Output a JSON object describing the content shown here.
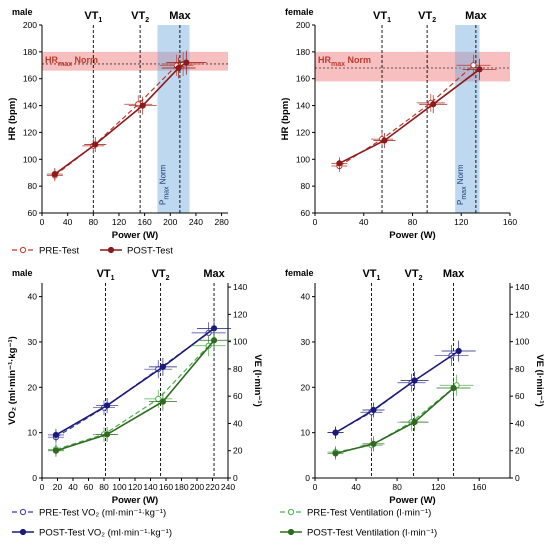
{
  "colors": {
    "pre_hr": "#c0392b",
    "post_hr": "#8b1a1a",
    "norm_band": "#f08080",
    "pmax_band": "#6fa8dc",
    "pre_vo2": "#3a3aa0",
    "post_vo2": "#1a1a7a",
    "pre_ve": "#4caf50",
    "post_ve": "#2e6b1f"
  },
  "chart_data": [
    {
      "type": "line",
      "panel": "male",
      "xlabel": "Power (W)",
      "ylabel": "HR (bpm)",
      "xlim": [
        0,
        290
      ],
      "ylim": [
        60,
        200
      ],
      "xticks": [
        "0",
        "40",
        "80",
        "120",
        "160",
        "200",
        "240",
        "280"
      ],
      "yticks": [
        "60",
        "80",
        "100",
        "120",
        "140",
        "160",
        "180",
        "200"
      ],
      "markers": [
        {
          "label": "VT",
          "sub": "1",
          "x": 80
        },
        {
          "label": "VT",
          "sub": "2",
          "x": 153
        },
        {
          "label": "Max",
          "x": 215
        }
      ],
      "band_label_main": "HR",
      "band_label_sub": "max",
      "band_label_tail": " Norm",
      "norm_band": {
        "y": [
          166,
          180
        ],
        "line": 171
      },
      "pmax_label_main": "P",
      "pmax_label_sub": "max",
      "pmax_label_tail": " Norm",
      "pmax_band": {
        "x": [
          180,
          230
        ]
      },
      "series": [
        {
          "name": "PRE-Test",
          "style": "pre",
          "x": [
            20,
            80,
            150,
            210,
            220
          ],
          "y": [
            88,
            110,
            141,
            170,
            171
          ]
        },
        {
          "name": "POST-Test",
          "style": "post",
          "x": [
            20,
            83,
            157,
            213,
            225
          ],
          "y": [
            89,
            111,
            140,
            168,
            172
          ]
        }
      ]
    },
    {
      "type": "line",
      "panel": "female",
      "xlabel": "Power (W)",
      "ylabel": "HR (bpm)",
      "xlim": [
        0,
        160
      ],
      "ylim": [
        60,
        200
      ],
      "xticks": [
        "0",
        "40",
        "80",
        "120",
        "160"
      ],
      "yticks": [
        "60",
        "80",
        "100",
        "120",
        "140",
        "160",
        "180",
        "200"
      ],
      "markers": [
        {
          "label": "VT",
          "sub": "1",
          "x": 55
        },
        {
          "label": "VT",
          "sub": "2",
          "x": 92
        },
        {
          "label": "Max",
          "x": 132
        }
      ],
      "band_label_main": "HR",
      "band_label_sub": "max",
      "band_label_tail": " Norm",
      "norm_band": {
        "y": [
          158,
          180
        ],
        "line": 168
      },
      "pmax_label_main": "P",
      "pmax_label_sub": "max",
      "pmax_label_tail": " Norm",
      "pmax_band": {
        "x": [
          115,
          135
        ]
      },
      "series": [
        {
          "name": "PRE-Test",
          "style": "pre",
          "x": [
            20,
            55,
            95,
            130
          ],
          "y": [
            95,
            115,
            142,
            170
          ]
        },
        {
          "name": "POST-Test",
          "style": "post",
          "x": [
            20,
            57,
            97,
            135
          ],
          "y": [
            97,
            114,
            141,
            167
          ]
        }
      ]
    },
    {
      "type": "line",
      "panel": "male",
      "xlabel": "Power (W)",
      "ylabel": "VO₂ (ml·min⁻¹·kg⁻¹)",
      "ylabel_right": "VE (l·min⁻¹)",
      "xlim": [
        0,
        240
      ],
      "ylim": [
        0,
        43
      ],
      "ylim_right": [
        0,
        143
      ],
      "xticks": [
        "0",
        "20",
        "40",
        "60",
        "80",
        "100",
        "120",
        "140",
        "160",
        "180",
        "200",
        "220",
        "240"
      ],
      "yticks": [
        "0",
        "10",
        "20",
        "30",
        "40"
      ],
      "yticks_right": [
        "0",
        "20",
        "40",
        "60",
        "80",
        "100",
        "120",
        "140"
      ],
      "markers": [
        {
          "label": "VT",
          "sub": "1",
          "x": 82
        },
        {
          "label": "VT",
          "sub": "2",
          "x": 153
        },
        {
          "label": "Max",
          "x": 222
        }
      ],
      "series": [
        {
          "name": "PRE-Test VO₂ (ml·min⁻¹·kg⁻¹)",
          "style": "pre_vo2",
          "axis": "left",
          "x": [
            18,
            80,
            150,
            215
          ],
          "y": [
            9,
            15.5,
            24,
            32
          ]
        },
        {
          "name": "POST-Test VO₂ (ml·min⁻¹·kg⁻¹)",
          "style": "post_vo2",
          "axis": "left",
          "x": [
            18,
            84,
            156,
            222
          ],
          "y": [
            9.5,
            16,
            24.5,
            33
          ]
        },
        {
          "name": "PRE-Test Ventilation (l·min⁻¹)",
          "style": "pre_ve",
          "axis": "right",
          "x": [
            18,
            80,
            150,
            215
          ],
          "y": [
            21,
            32,
            58,
            97
          ]
        },
        {
          "name": "POST-Test Ventilation (l·min⁻¹)",
          "style": "post_ve",
          "axis": "right",
          "x": [
            18,
            84,
            156,
            222
          ],
          "y": [
            20,
            32,
            56,
            101
          ]
        }
      ]
    },
    {
      "type": "line",
      "panel": "female",
      "xlabel": "Power (W)",
      "ylabel_right": "VE (l·min⁻¹)",
      "xlim": [
        0,
        190
      ],
      "ylim": [
        0,
        43
      ],
      "ylim_right": [
        0,
        143
      ],
      "xticks": [
        "0",
        "40",
        "80",
        "120",
        "160"
      ],
      "yticks": [
        "0",
        "10",
        "20",
        "30",
        "40"
      ],
      "yticks_right": [
        "0",
        "20",
        "40",
        "60",
        "80",
        "100",
        "120",
        "140"
      ],
      "markers": [
        {
          "label": "VT",
          "sub": "1",
          "x": 55
        },
        {
          "label": "VT",
          "sub": "2",
          "x": 96
        },
        {
          "label": "Max",
          "x": 135
        }
      ],
      "series": [
        {
          "name": "PRE-Test VO₂ (ml·min⁻¹·kg⁻¹)",
          "style": "pre_vo2",
          "axis": "left",
          "x": [
            20,
            55,
            94,
            133
          ],
          "y": [
            10,
            14.5,
            21,
            27
          ]
        },
        {
          "name": "POST-Test VO₂ (ml·min⁻¹·kg⁻¹)",
          "style": "post_vo2",
          "axis": "left",
          "x": [
            20,
            57,
            97,
            140
          ],
          "y": [
            10,
            15,
            21.5,
            28
          ]
        },
        {
          "name": "PRE-Test Ventilation (l·min⁻¹)",
          "style": "pre_ve",
          "axis": "right",
          "x": [
            20,
            55,
            94,
            138
          ],
          "y": [
            19,
            24,
            41,
            68
          ]
        },
        {
          "name": "POST-Test Ventilation (l·min⁻¹)",
          "style": "post_ve",
          "axis": "right",
          "x": [
            20,
            57,
            97,
            135
          ],
          "y": [
            18,
            25,
            41,
            66
          ]
        }
      ]
    }
  ],
  "legend_hr": [
    {
      "label": "PRE-Test",
      "style": "pre"
    },
    {
      "label": "POST-Test",
      "style": "post"
    }
  ],
  "legend_vo2": [
    {
      "label": "PRE-Test VO₂ (ml·min⁻¹·kg⁻¹)",
      "style": "pre_vo2"
    },
    {
      "label": "PRE-Test Ventilation (l·min⁻¹)",
      "style": "pre_ve"
    },
    {
      "label": "POST-Test VO₂ (ml·min⁻¹·kg⁻¹)",
      "style": "post_vo2"
    },
    {
      "label": "POST-Test Ventilation (l·min⁻¹)",
      "style": "post_ve"
    }
  ]
}
